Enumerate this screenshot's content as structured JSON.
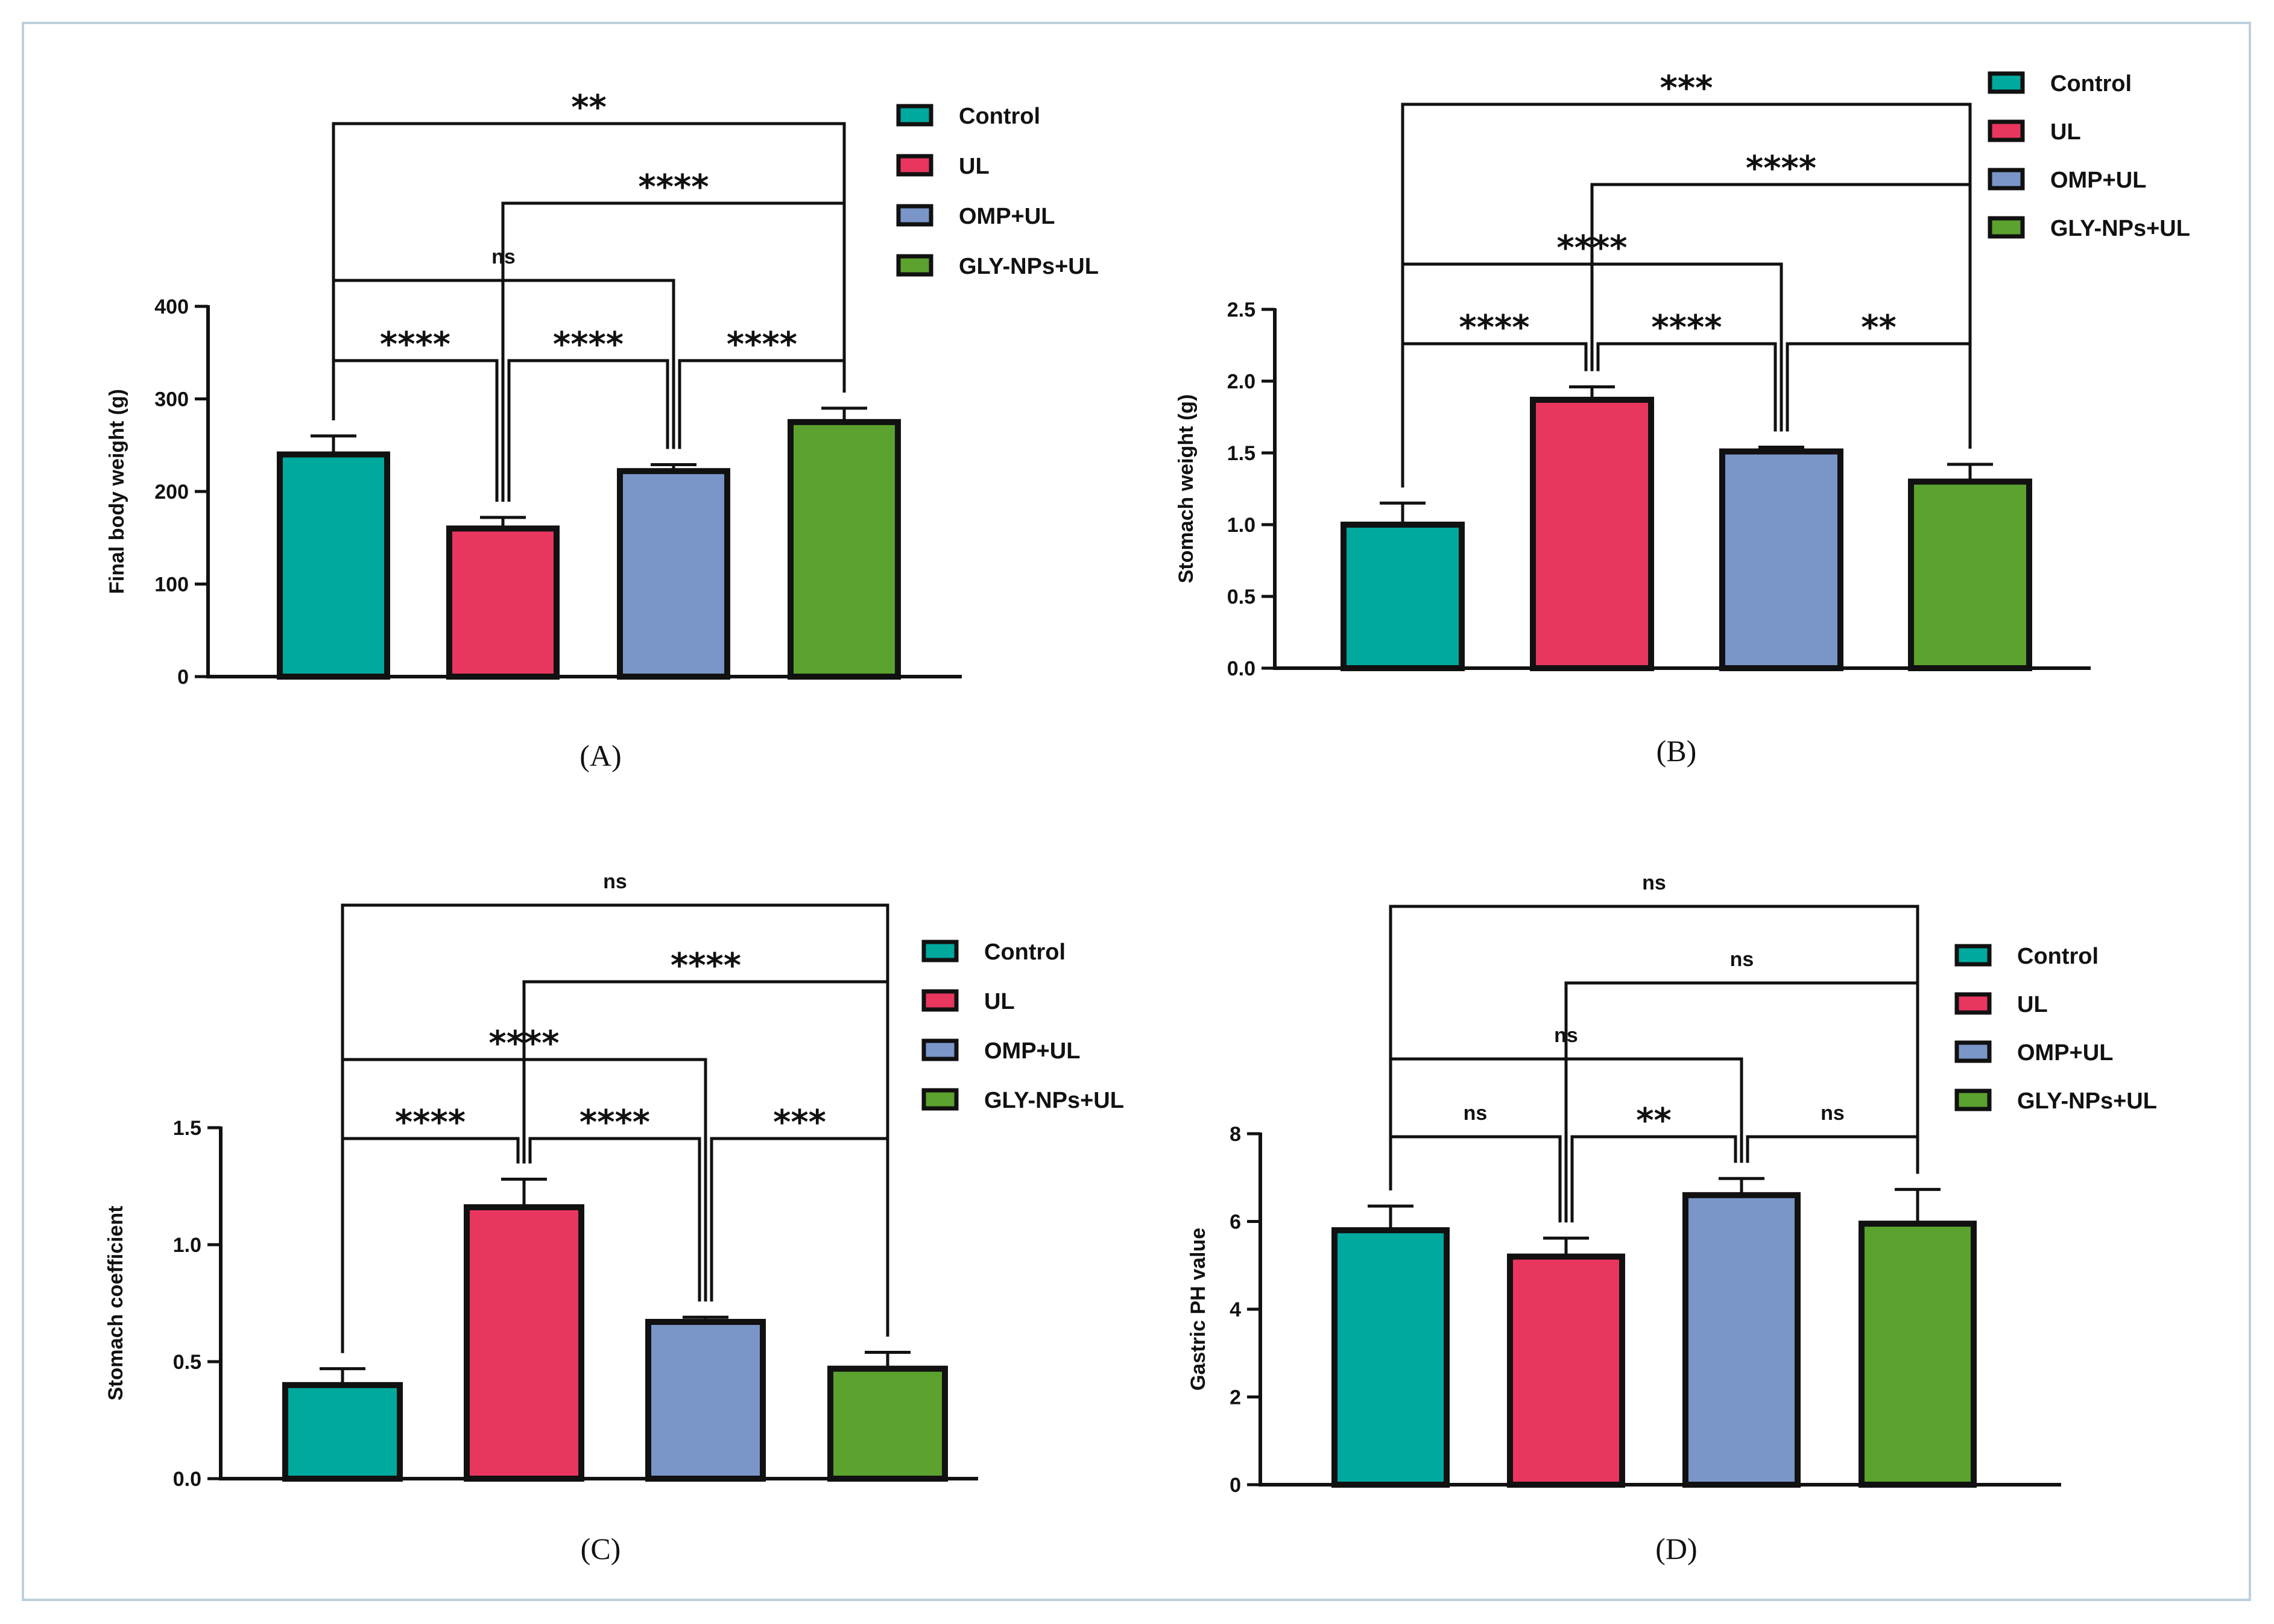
{
  "colors": {
    "Control": "#00a99d",
    "UL": "#e8365f",
    "OMP+UL": "#7a96c9",
    "GLY-NPs+UL": "#5ba22e",
    "frame": "#bcd0dc"
  },
  "legend": [
    "Control",
    "UL",
    "OMP+UL",
    "GLY-NPs+UL"
  ],
  "chart_data": [
    {
      "type": "bar",
      "panel_label": "(A)",
      "categories": [
        "Control",
        "UL",
        "OMP+UL",
        "GLY-NPs+UL"
      ],
      "values": [
        240,
        160,
        222,
        275
      ],
      "errors": [
        20,
        12,
        7,
        15
      ],
      "ylabel": "Final body weight (g)",
      "ylim": [
        0,
        400
      ],
      "yticks": [
        "0",
        "100",
        "200",
        "300",
        "400"
      ],
      "comparisons": [
        {
          "pair": [
            "Control",
            "GLY-NPs+UL"
          ],
          "label": "**"
        },
        {
          "pair": [
            "UL",
            "GLY-NPs+UL"
          ],
          "label": "****"
        },
        {
          "pair": [
            "Control",
            "OMP+UL"
          ],
          "label": "ns"
        },
        {
          "pair": [
            "Control",
            "UL"
          ],
          "label": "****"
        },
        {
          "pair": [
            "UL",
            "OMP+UL"
          ],
          "label": "****"
        },
        {
          "pair": [
            "OMP+UL",
            "GLY-NPs+UL"
          ],
          "label": "****"
        }
      ]
    },
    {
      "type": "bar",
      "panel_label": "(B)",
      "categories": [
        "Control",
        "UL",
        "OMP+UL",
        "GLY-NPs+UL"
      ],
      "values": [
        1.0,
        1.87,
        1.51,
        1.3
      ],
      "errors": [
        0.15,
        0.09,
        0.03,
        0.12
      ],
      "ylabel": "Stomach weight (g)",
      "ylim": [
        0,
        2.5
      ],
      "yticks": [
        "0.0",
        "0.5",
        "1.0",
        "1.5",
        "2.0",
        "2.5"
      ],
      "comparisons": [
        {
          "pair": [
            "Control",
            "GLY-NPs+UL"
          ],
          "label": "***"
        },
        {
          "pair": [
            "UL",
            "GLY-NPs+UL"
          ],
          "label": "****"
        },
        {
          "pair": [
            "Control",
            "OMP+UL"
          ],
          "label": "****"
        },
        {
          "pair": [
            "Control",
            "UL"
          ],
          "label": "****"
        },
        {
          "pair": [
            "UL",
            "OMP+UL"
          ],
          "label": "****"
        },
        {
          "pair": [
            "OMP+UL",
            "GLY-NPs+UL"
          ],
          "label": "**"
        }
      ]
    },
    {
      "type": "bar",
      "panel_label": "(C)",
      "categories": [
        "Control",
        "UL",
        "OMP+UL",
        "GLY-NPs+UL"
      ],
      "values": [
        0.4,
        1.16,
        0.67,
        0.47
      ],
      "errors": [
        0.07,
        0.12,
        0.02,
        0.07
      ],
      "ylabel": "Stomach coefficient",
      "ylim": [
        0,
        1.5
      ],
      "yticks": [
        "0.0",
        "0.5",
        "1.0",
        "1.5"
      ],
      "comparisons": [
        {
          "pair": [
            "Control",
            "GLY-NPs+UL"
          ],
          "label": "ns"
        },
        {
          "pair": [
            "UL",
            "GLY-NPs+UL"
          ],
          "label": "****"
        },
        {
          "pair": [
            "Control",
            "OMP+UL"
          ],
          "label": "****"
        },
        {
          "pair": [
            "Control",
            "UL"
          ],
          "label": "****"
        },
        {
          "pair": [
            "UL",
            "OMP+UL"
          ],
          "label": "****"
        },
        {
          "pair": [
            "OMP+UL",
            "GLY-NPs+UL"
          ],
          "label": "***"
        }
      ]
    },
    {
      "type": "bar",
      "panel_label": "(D)",
      "categories": [
        "Control",
        "UL",
        "OMP+UL",
        "GLY-NPs+UL"
      ],
      "values": [
        5.8,
        5.2,
        6.6,
        5.95
      ],
      "errors": [
        0.55,
        0.42,
        0.38,
        0.78
      ],
      "ylabel": "Gastric PH value",
      "ylim": [
        0,
        8
      ],
      "yticks": [
        "0",
        "2",
        "4",
        "6",
        "8"
      ],
      "comparisons": [
        {
          "pair": [
            "Control",
            "GLY-NPs+UL"
          ],
          "label": "ns"
        },
        {
          "pair": [
            "UL",
            "GLY-NPs+UL"
          ],
          "label": "ns"
        },
        {
          "pair": [
            "Control",
            "OMP+UL"
          ],
          "label": "ns"
        },
        {
          "pair": [
            "Control",
            "UL"
          ],
          "label": "ns"
        },
        {
          "pair": [
            "UL",
            "OMP+UL"
          ],
          "label": "**"
        },
        {
          "pair": [
            "OMP+UL",
            "GLY-NPs+UL"
          ],
          "label": "ns"
        }
      ]
    }
  ]
}
